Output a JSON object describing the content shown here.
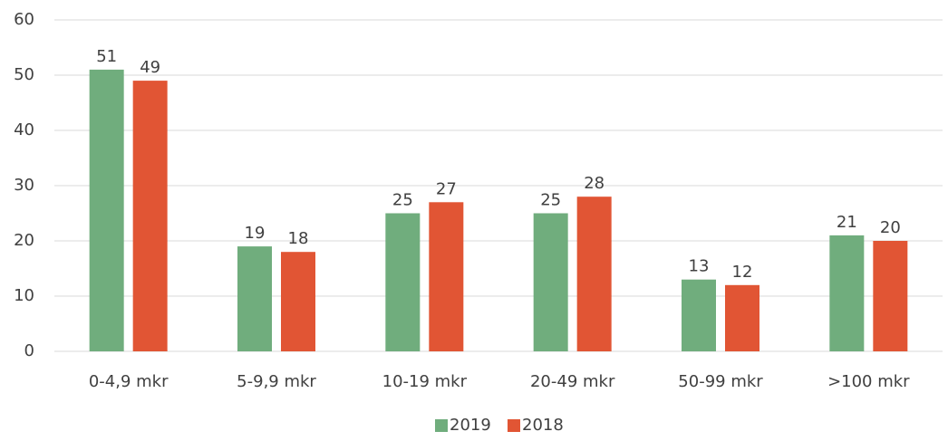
{
  "chart_data": {
    "type": "bar",
    "categories": [
      "0-4,9 mkr",
      "5-9,9 mkr",
      "10-19 mkr",
      "20-49 mkr",
      "50-99 mkr",
      ">100 mkr"
    ],
    "series": [
      {
        "name": "2019",
        "color": "#70ad7d",
        "values": [
          51,
          19,
          25,
          25,
          13,
          21
        ]
      },
      {
        "name": "2018",
        "color": "#e15534",
        "values": [
          49,
          18,
          27,
          28,
          12,
          20
        ]
      }
    ],
    "ylim": [
      0,
      60
    ],
    "yticks": [
      0,
      10,
      20,
      30,
      40,
      50,
      60
    ],
    "grid": true,
    "legend": "bottom"
  }
}
